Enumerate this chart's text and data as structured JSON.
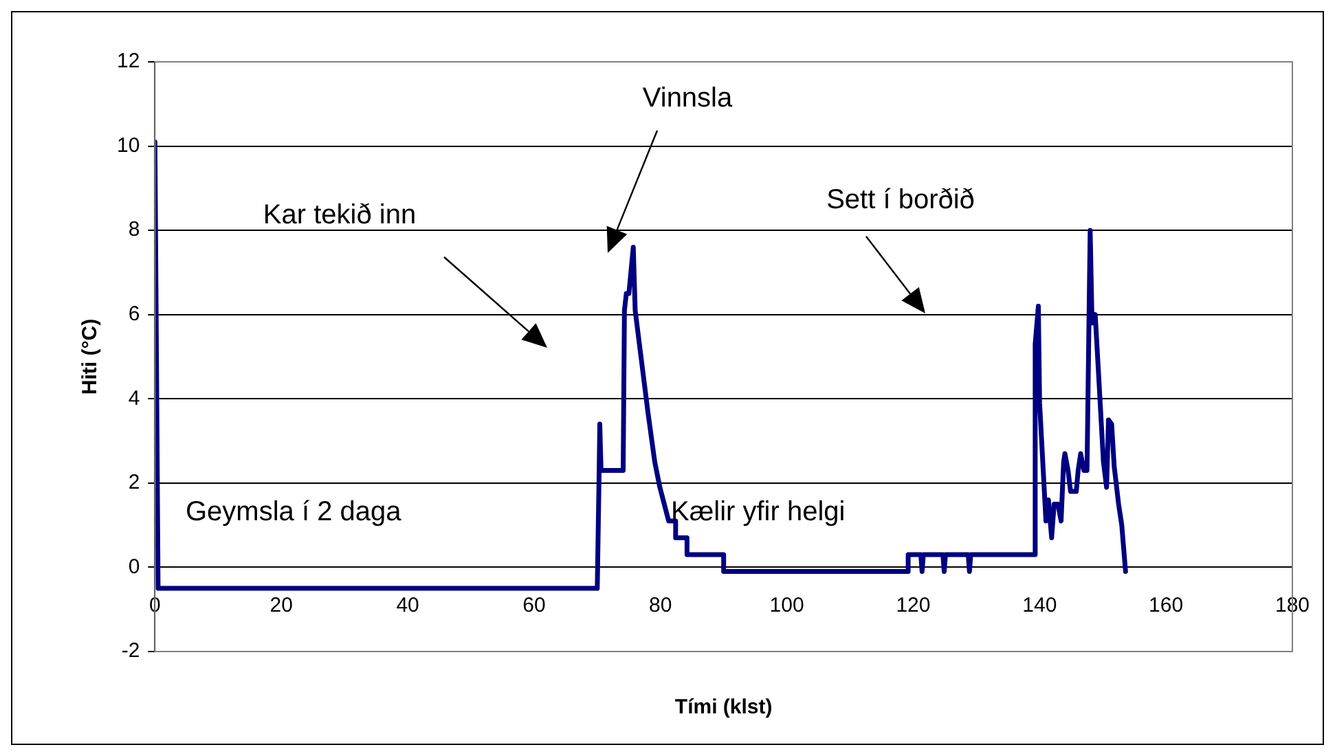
{
  "chart_data": {
    "type": "line",
    "xlabel": "Tími (klst)",
    "ylabel": "Hiti (°C)",
    "xlim": [
      0,
      180
    ],
    "xticks": [
      0,
      20,
      40,
      60,
      80,
      100,
      120,
      140,
      160,
      180
    ],
    "ylim": [
      -2,
      12
    ],
    "yticks": [
      -2,
      0,
      2,
      4,
      6,
      8,
      10,
      12
    ],
    "grid": "y",
    "legend": false,
    "marker": "none",
    "line_style": "solid",
    "annotations": [
      "Vinnsla",
      "Kar tekið inn",
      "Sett í borðið",
      "Geymsla í 2 daga",
      "Kælir yfir helgi"
    ],
    "series": [
      {
        "color": "#000080",
        "x": [
          0,
          0.5,
          70,
          70.3,
          70.4,
          70.6,
          74.1,
          74.3,
          74.6,
          75.0,
          75.7,
          76.0,
          78.0,
          79.1,
          79.9,
          80.6,
          81.3,
          82.4,
          82.4,
          84.2,
          84.2,
          90,
          90,
          119.1,
          119.2,
          121.2,
          121.4,
          121.6,
          124.7,
          124.9,
          125.1,
          128.7,
          128.9,
          129.1,
          139.2,
          139.3,
          139.8,
          140.0,
          140.5,
          141.0,
          141.4,
          141.9,
          142.3,
          142.9,
          143.4,
          143.8,
          144.0,
          144.5,
          144.9,
          145.8,
          146.1,
          146.5,
          147.0,
          147.5,
          148.0,
          148.3,
          148.8,
          149.4,
          150.1,
          150.6,
          150.9,
          151.4,
          151.8,
          152.5,
          153.0,
          153.6
        ],
        "values": [
          10.1,
          -0.5,
          -0.5,
          2.3,
          3.4,
          2.3,
          2.3,
          6.1,
          6.5,
          6.5,
          7.6,
          6.1,
          3.7,
          2.5,
          1.9,
          1.5,
          1.1,
          1.1,
          0.7,
          0.7,
          0.3,
          0.3,
          -0.1,
          -0.1,
          0.3,
          0.3,
          -0.1,
          0.3,
          0.3,
          -0.1,
          0.3,
          0.3,
          -0.1,
          0.3,
          0.3,
          5.3,
          6.2,
          3.9,
          2.5,
          1.1,
          1.6,
          0.7,
          1.5,
          1.5,
          1.1,
          2.5,
          2.7,
          2.3,
          1.8,
          1.8,
          2.3,
          2.7,
          2.3,
          2.3,
          8.0,
          5.8,
          6.0,
          4.4,
          2.5,
          1.9,
          3.5,
          3.4,
          2.4,
          1.5,
          1.0,
          -0.1
        ]
      }
    ]
  }
}
